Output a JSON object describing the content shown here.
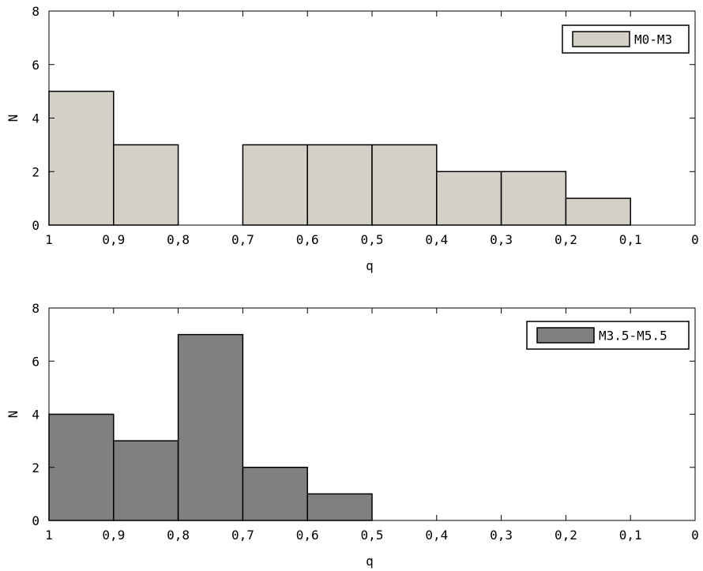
{
  "chart_data": [
    {
      "type": "bar",
      "subtype": "histogram",
      "x_reversed": true,
      "bin_edges": [
        1,
        0.9,
        0.8,
        0.7,
        0.6,
        0.5,
        0.4,
        0.3,
        0.2,
        0.1,
        0
      ],
      "values": [
        5,
        3,
        0,
        3,
        3,
        3,
        2,
        2,
        1,
        0
      ],
      "xlabel": "q",
      "ylabel": "N",
      "xlim": [
        1,
        0
      ],
      "ylim": [
        0,
        8
      ],
      "xticks": [
        "1",
        "0,9",
        "0,8",
        "0,7",
        "0,6",
        "0,5",
        "0,4",
        "0,3",
        "0,2",
        "0,1",
        "0"
      ],
      "yticks": [
        "0",
        "2",
        "4",
        "6",
        "8"
      ],
      "grid": false,
      "legend": {
        "label": "M0-M3",
        "placement": "top-right"
      },
      "color": "#d4d0c8"
    },
    {
      "type": "bar",
      "subtype": "histogram",
      "x_reversed": true,
      "bin_edges": [
        1,
        0.9,
        0.8,
        0.7,
        0.6,
        0.5,
        0.4,
        0.3,
        0.2,
        0.1,
        0
      ],
      "values": [
        4,
        3,
        7,
        2,
        1,
        0,
        0,
        0,
        0,
        0
      ],
      "xlabel": "q",
      "ylabel": "N",
      "xlim": [
        1,
        0
      ],
      "ylim": [
        0,
        8
      ],
      "xticks": [
        "1",
        "0,9",
        "0,8",
        "0,7",
        "0,6",
        "0,5",
        "0,4",
        "0,3",
        "0,2",
        "0,1",
        "0"
      ],
      "yticks": [
        "0",
        "2",
        "4",
        "6",
        "8"
      ],
      "grid": false,
      "legend": {
        "label": "M3.5-M5.5",
        "placement": "top-right"
      },
      "color": "#808080"
    }
  ]
}
